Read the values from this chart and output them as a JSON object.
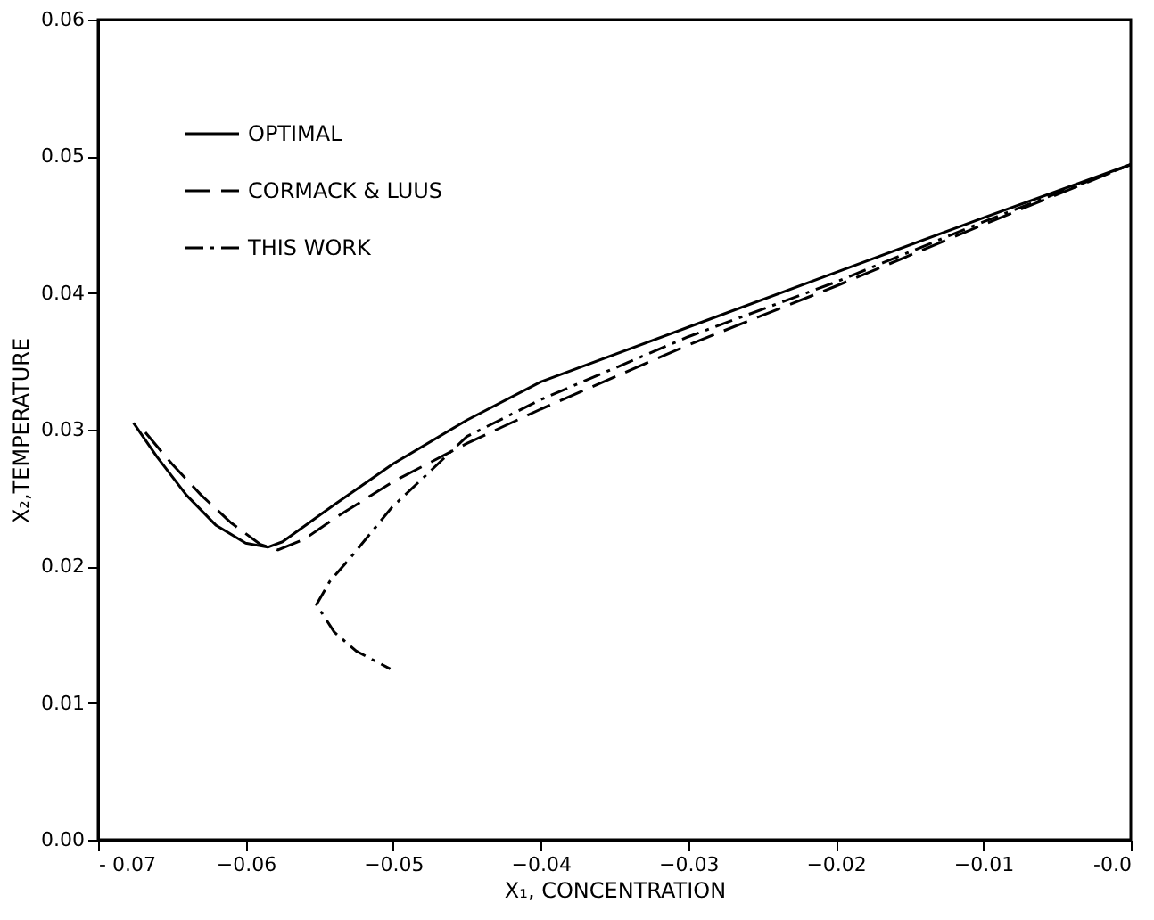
{
  "chart_data": {
    "type": "line",
    "xlabel": "X₁, CONCENTRATION",
    "ylabel": "X₂,TEMPERATURE",
    "xlim": [
      -0.07,
      0.0
    ],
    "ylim": [
      0.0,
      0.06
    ],
    "xticks": [
      {
        "value": -0.07,
        "label": "- 0.07"
      },
      -0.06,
      -0.05,
      -0.04,
      -0.03,
      -0.02,
      -0.01,
      {
        "value": 0.0,
        "label": "-0.0"
      }
    ],
    "yticks": [
      {
        "value": 0.0,
        "label": "0.00"
      },
      0.01,
      0.02,
      0.03,
      0.04,
      0.05,
      0.06
    ],
    "grid": false,
    "legend": "top left",
    "marker": "none",
    "series": [
      {
        "name": "OPTIMAL",
        "color": "#000000",
        "line_style": "solid",
        "x": [
          -0.0676,
          -0.066,
          -0.064,
          -0.062,
          -0.06,
          -0.0585,
          -0.0575,
          -0.054,
          -0.05,
          -0.045,
          -0.04,
          -0.03,
          -0.02,
          -0.01,
          0.0
        ],
        "values": [
          0.0305,
          0.028,
          0.0252,
          0.023,
          0.0217,
          0.0214,
          0.0218,
          0.0245,
          0.0275,
          0.0307,
          0.0335,
          0.0375,
          0.0415,
          0.0455,
          0.0494
        ]
      },
      {
        "name": "CORMACK & LUUS",
        "color": "#000000",
        "line_style": "dashed",
        "x": [
          -0.0668,
          -0.065,
          -0.063,
          -0.061,
          -0.059,
          -0.0578,
          -0.056,
          -0.054,
          -0.05,
          -0.045,
          -0.04,
          -0.03,
          -0.02,
          -0.01,
          0.0
        ],
        "values": [
          0.0298,
          0.0275,
          0.0252,
          0.0232,
          0.0216,
          0.0212,
          0.022,
          0.0235,
          0.0262,
          0.029,
          0.0315,
          0.0362,
          0.0405,
          0.045,
          0.0494
        ]
      },
      {
        "name": "THIS WORK",
        "color": "#000000",
        "line_style": "dotdash",
        "x": [
          0.0,
          -0.01,
          -0.02,
          -0.03,
          -0.04,
          -0.045,
          -0.0501,
          -0.053,
          -0.0543,
          -0.0552,
          -0.054,
          -0.0525,
          -0.0502
        ],
        "values": [
          0.0494,
          0.0452,
          0.0408,
          0.0368,
          0.0322,
          0.0295,
          0.0243,
          0.0205,
          0.0189,
          0.0172,
          0.0152,
          0.0138,
          0.0125
        ]
      }
    ]
  }
}
